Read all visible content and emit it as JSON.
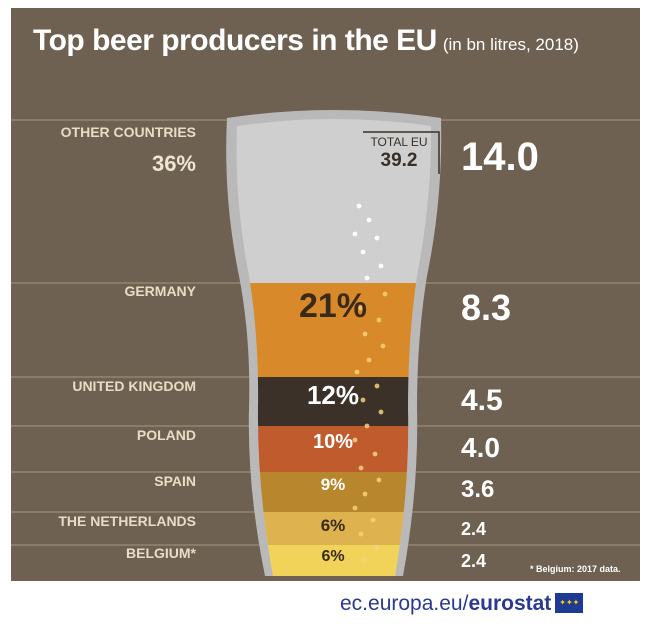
{
  "title": "Top beer producers in the EU",
  "subtitle": "(in bn litres, 2018)",
  "footnote": "* Belgium: 2017 data.",
  "footer": {
    "domain": "ec.europa.eu/",
    "brand": "eurostat",
    "flag_icon": "eu-flag-icon"
  },
  "colors": {
    "background": "#6e6152",
    "label": "#e9dcc6",
    "value": "#ffffff",
    "footer": "#2b3a8f"
  },
  "chart_data": {
    "type": "bar",
    "title": "Top beer producers in the EU",
    "subtitle": "(in bn litres, 2018)",
    "unit": "bn litres",
    "total": {
      "label": "TOTAL EU",
      "value": 39.2
    },
    "categories": [
      "OTHER COUNTRIES",
      "GERMANY",
      "UNITED KINGDOM",
      "POLAND",
      "SPAIN",
      "THE NETHERLANDS",
      "BELGIUM*"
    ],
    "values": [
      14.0,
      8.3,
      4.5,
      4.0,
      3.6,
      2.4,
      2.4
    ],
    "value_labels": [
      "14.0",
      "8.3",
      "4.5",
      "4.0",
      "3.6",
      "2.4",
      "2.4"
    ],
    "shares_percent": [
      36,
      21,
      12,
      10,
      9,
      6,
      6
    ],
    "share_labels": [
      "36%",
      "21%",
      "12%",
      "10%",
      "9%",
      "6%",
      "6%"
    ],
    "layer_colors": [
      "#cfcfcf",
      "#d8892a",
      "#3b3129",
      "#bf5b2c",
      "#b8862c",
      "#deb24f",
      "#f2d35a"
    ],
    "share_colors": [
      "#efe6d2",
      "#3a2a1a",
      "#ffffff",
      "#ffffff",
      "#ffffff",
      "#3a2a1a",
      "#3a2a1a"
    ]
  }
}
